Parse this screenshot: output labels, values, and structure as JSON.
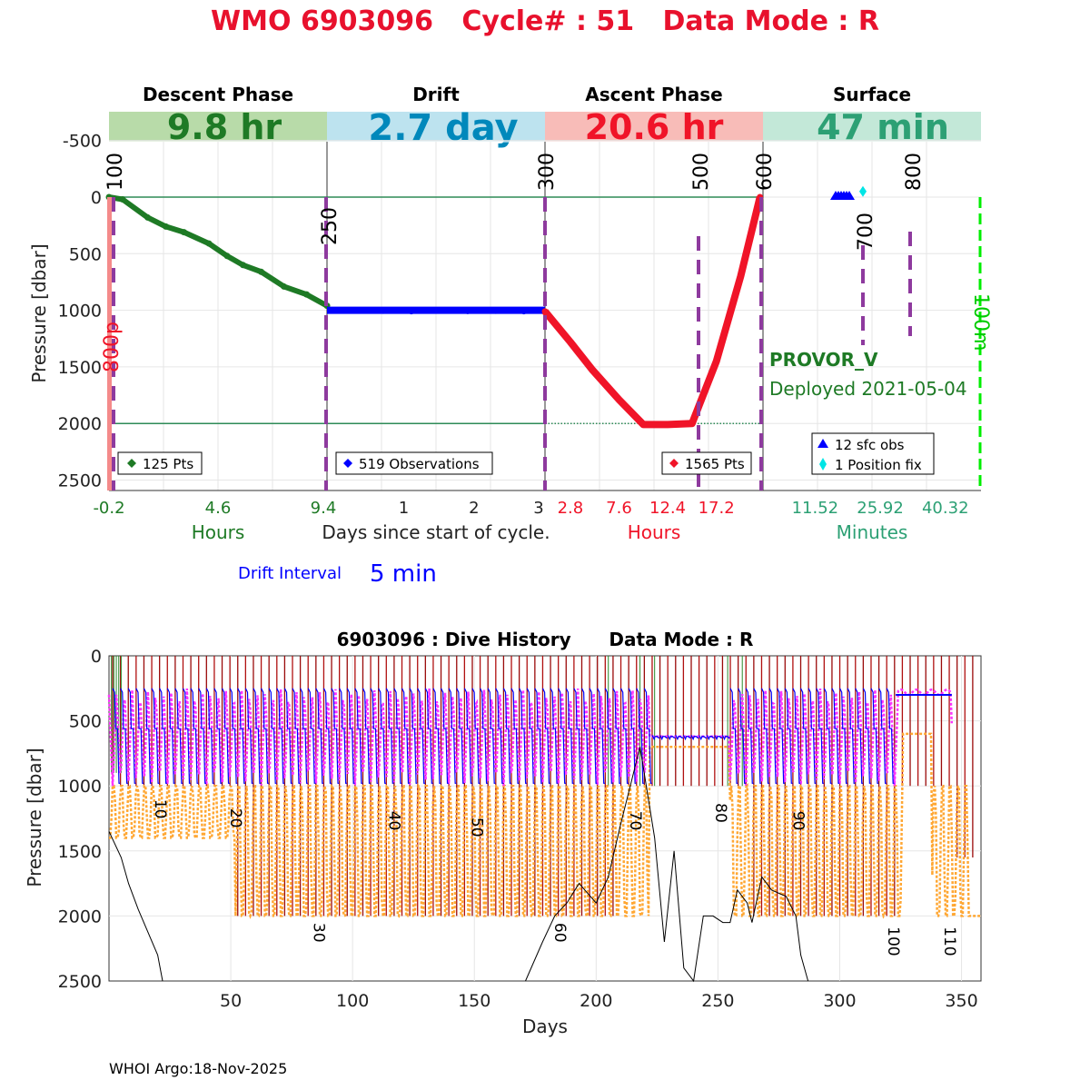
{
  "main_title": "WMO 6903096   Cycle# : 51   Data Mode : R",
  "colors": {
    "title_red": "#e8112d",
    "descent_green": "#1e7a25",
    "drift_blue": "#0000ff",
    "ascent_red": "#f01428",
    "surface_teal": "#2ca074",
    "purple": "#8e3a9e",
    "magenta": "#ff33ff",
    "orange": "#ffa733",
    "lime": "#00ee00",
    "dark_red": "#9a0a0a"
  },
  "top": {
    "phases": [
      {
        "name": "Descent Phase",
        "duration": "9.8 hr",
        "band_color": "#b8dba9",
        "text_color": "#1e7a25"
      },
      {
        "name": "Drift",
        "duration": "2.7 day",
        "band_color": "#bde3ef",
        "text_color": "#0088bb"
      },
      {
        "name": "Ascent Phase",
        "duration": "20.6 hr",
        "band_color": "#f8bcb8",
        "text_color": "#f01428"
      },
      {
        "name": "Surface",
        "duration": "47 min",
        "band_color": "#c3e8d8",
        "text_color": "#2ca074"
      }
    ],
    "ylabel": "Pressure [dbar]",
    "yticks": [
      "-500",
      "0",
      "500",
      "1000",
      "1500",
      "2000",
      "2500"
    ],
    "xtick_groups": [
      {
        "labels": [
          "-0.2",
          "4.6",
          "9.4"
        ],
        "color": "#1e7a25"
      },
      {
        "labels": [
          "1",
          "2",
          "3"
        ],
        "color": "#222222"
      },
      {
        "labels": [
          "2.8",
          "7.6",
          "12.4",
          "17.2"
        ],
        "color": "#f01428"
      },
      {
        "labels": [
          "11.52",
          "25.92",
          "40.32"
        ],
        "color": "#2ca074"
      }
    ],
    "xlabels": {
      "hours_left": "Hours",
      "days": "Days since start of cycle.",
      "hours_right": "Hours",
      "minutes": "Minutes"
    },
    "markers": [
      "100",
      "250",
      "300",
      "500",
      "600",
      "700",
      "800"
    ],
    "side_label_left": "800p",
    "side_label_right": "100m",
    "legends": {
      "descent": "125 Pts",
      "drift": "519 Observations",
      "ascent": "1565 Pts",
      "surface_obs": "12 sfc obs",
      "surface_fix": "1 Position fix"
    },
    "platform": "PROVOR_V",
    "deployed": "Deployed 2021-05-04",
    "drift_interval_label": "Drift Interval",
    "drift_interval_value": "5 min"
  },
  "bottom": {
    "title": "6903096 : Dive History      Data Mode : R",
    "ylabel": "Pressure [dbar]",
    "xlabel": "Days",
    "yticks": [
      "0",
      "500",
      "1000",
      "1500",
      "2000",
      "2500"
    ],
    "xticks": [
      "50",
      "100",
      "150",
      "200",
      "250",
      "300",
      "350"
    ],
    "cycle_labels": [
      "10",
      "20",
      "30",
      "40",
      "50",
      "60",
      "70",
      "80",
      "90",
      "100",
      "110"
    ]
  },
  "footer": "WHOI Argo:18-Nov-2025",
  "chart_data": [
    {
      "type": "scatter",
      "title": "WMO 6903096   Cycle# : 51   Data Mode : R",
      "ylabel": "Pressure [dbar]",
      "ylim": [
        -650,
        2600
      ],
      "y_reversed": true,
      "series": [
        {
          "name": "125 Pts",
          "unit_x": "Hours",
          "x": [
            -0.2,
            0.4,
            1.5,
            2.3,
            3.1,
            4.2,
            5.0,
            5.7,
            6.5,
            7.5,
            8.5,
            9.4
          ],
          "y": [
            0,
            20,
            180,
            260,
            310,
            410,
            520,
            600,
            660,
            790,
            860,
            960
          ]
        },
        {
          "name": "519 Observations",
          "unit_x": "Days",
          "x": [
            0.4,
            0.8,
            1.2,
            1.6,
            2.0,
            2.4,
            2.8,
            3.0
          ],
          "y": [
            1005,
            1008,
            1012,
            1006,
            1010,
            1008,
            1012,
            1005
          ]
        },
        {
          "name": "1565 Pts",
          "unit_x": "Hours",
          "x": [
            0.3,
            2.8,
            5.0,
            7.6,
            10.0,
            12.4,
            14.8,
            17.2,
            19.6,
            21.5
          ],
          "y": [
            1010,
            1280,
            1530,
            1790,
            2010,
            2010,
            2000,
            1450,
            700,
            0
          ]
        },
        {
          "name": "12 sfc obs",
          "unit_x": "Minutes",
          "x": [
            13,
            14,
            15,
            16,
            17,
            18
          ],
          "y": [
            0,
            0,
            0,
            0,
            0,
            0
          ]
        },
        {
          "name": "1 Position fix",
          "unit_x": "Minutes",
          "x": [
            21
          ],
          "y": [
            -50
          ]
        }
      ],
      "reference_lines_y": [
        0,
        2000
      ],
      "xlabels": [
        "Hours",
        "Days since start of cycle.",
        "Hours",
        "Minutes"
      ]
    },
    {
      "type": "line",
      "title": "6903096 : Dive History      Data Mode : R",
      "xlabel": "Days",
      "ylabel": "Pressure [dbar]",
      "xlim": [
        0,
        358
      ],
      "ylim": [
        0,
        2500
      ],
      "y_reversed": true,
      "series": [
        {
          "x": [
            0,
            5,
            8,
            12,
            20,
            22
          ],
          "y": [
            1350,
            1550,
            1750,
            1950,
            2300,
            2500
          ]
        },
        {
          "x": [
            171,
            178,
            183,
            188,
            193,
            200,
            205,
            210,
            214,
            218,
            224,
            228,
            232,
            236,
            240,
            244,
            248,
            252,
            255,
            258,
            262,
            264,
            268,
            272,
            278,
            282,
            284,
            287
          ],
          "y": [
            2500,
            2200,
            2000,
            1900,
            1750,
            1900,
            1700,
            1300,
            1000,
            700,
            1400,
            2200,
            1500,
            2400,
            2500,
            2000,
            2000,
            2050,
            2050,
            1800,
            1900,
            2050,
            1700,
            1800,
            1850,
            2000,
            2300,
            2500
          ]
        }
      ],
      "bands": {
        "orange_park_depth": [
          [
            0,
            1000
          ],
          [
            5,
            1400
          ],
          [
            40,
            1400
          ],
          [
            52,
            1000
          ],
          [
            56,
            2000
          ],
          [
            100,
            2000
          ],
          [
            210,
            2000
          ],
          [
            222,
            700
          ],
          [
            255,
            700
          ],
          [
            262,
            1000
          ],
          [
            300,
            2000
          ],
          [
            322,
            2000
          ],
          [
            326,
            600
          ],
          [
            338,
            600
          ],
          [
            348,
            1000
          ],
          [
            354,
            2000
          ],
          [
            358,
            2000
          ]
        ],
        "magenta_drift": [
          [
            0,
            1000
          ],
          [
            5,
            250
          ],
          [
            222,
            250
          ],
          [
            225,
            620
          ],
          [
            255,
            620
          ],
          [
            260,
            250
          ],
          [
            322,
            250
          ],
          [
            325,
            300
          ],
          [
            346,
            300
          ]
        ]
      }
    }
  ]
}
